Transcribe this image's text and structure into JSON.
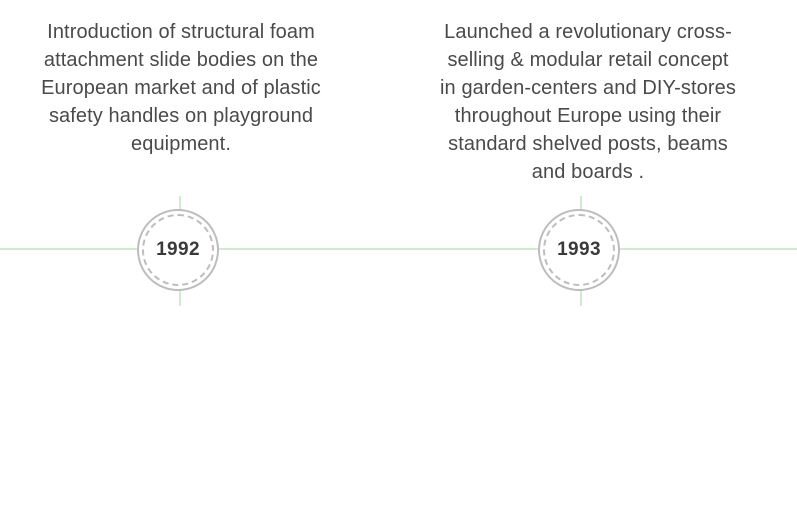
{
  "timeline": {
    "events": [
      {
        "year": "1992",
        "text": "Introduction of structural foam attachment slide bodies on the European market and of plastic safety handles on playground equipment."
      },
      {
        "year": "1993",
        "text": "Launched a revolutionary cross-selling & modular retail concept in garden-centers and DIY-stores throughout Europe using their standard shelved posts, beams and boards ."
      }
    ]
  },
  "colors": {
    "line": "#cfeccc",
    "circle_border": "#bdbdbd",
    "text": "#4a4a4a",
    "year_text": "#3a3a3a"
  }
}
